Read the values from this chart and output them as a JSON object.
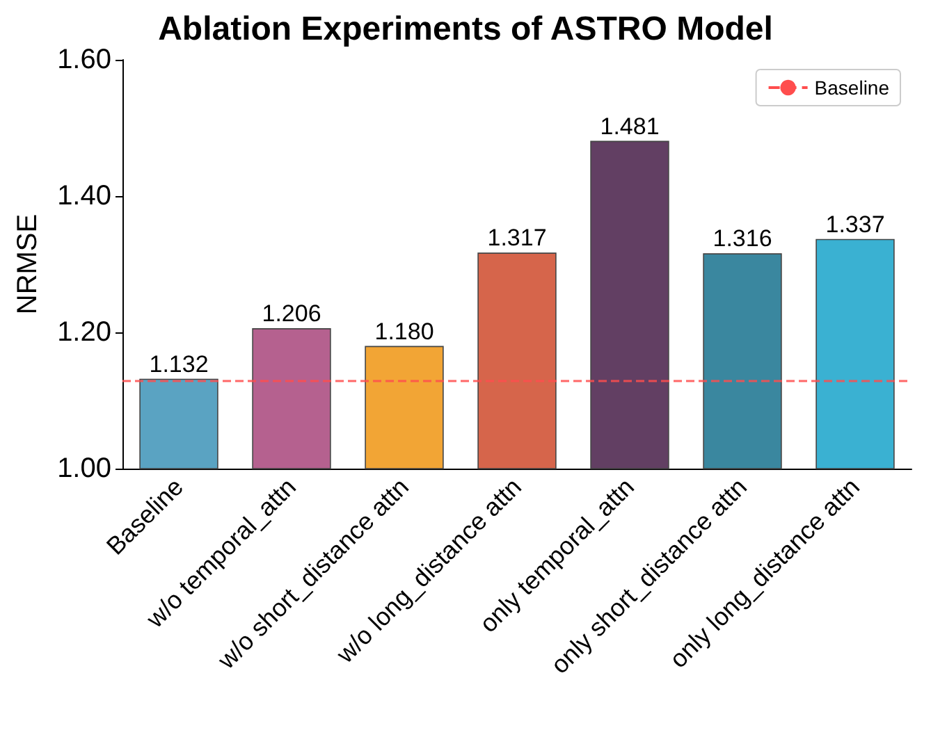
{
  "chart_data": {
    "type": "bar",
    "title": "Ablation Experiments of ASTRO Model",
    "ylabel": "NRMSE",
    "categories": [
      "Baseline",
      "w/o temporal_attn",
      "w/o short_distance attn",
      "w/o long_distance attn",
      "only temporal_attn",
      "only short_distance attn",
      "only long_distance attn"
    ],
    "values": [
      1.132,
      1.206,
      1.18,
      1.317,
      1.481,
      1.316,
      1.337
    ],
    "colors": [
      "#5aa3c2",
      "#b5618f",
      "#f2a535",
      "#d6654b",
      "#623f63",
      "#3a879f",
      "#3ab1d2"
    ],
    "value_labels": [
      "1.132",
      "1.206",
      "1.180",
      "1.317",
      "1.481",
      "1.316",
      "1.337"
    ],
    "ylim": [
      1.0,
      1.6
    ],
    "yticks": [
      {
        "value": 1.0,
        "label": "1.00"
      },
      {
        "value": 1.2,
        "label": "1.20"
      },
      {
        "value": 1.4,
        "label": "1.40"
      },
      {
        "value": 1.6,
        "label": "1.60"
      }
    ],
    "ref_lines": [
      {
        "axis": "y",
        "value": 1.132,
        "label": "Baseline",
        "color": "#ff4d4d",
        "line_style": "dashed"
      }
    ],
    "legend": "top right",
    "grid": false
  }
}
